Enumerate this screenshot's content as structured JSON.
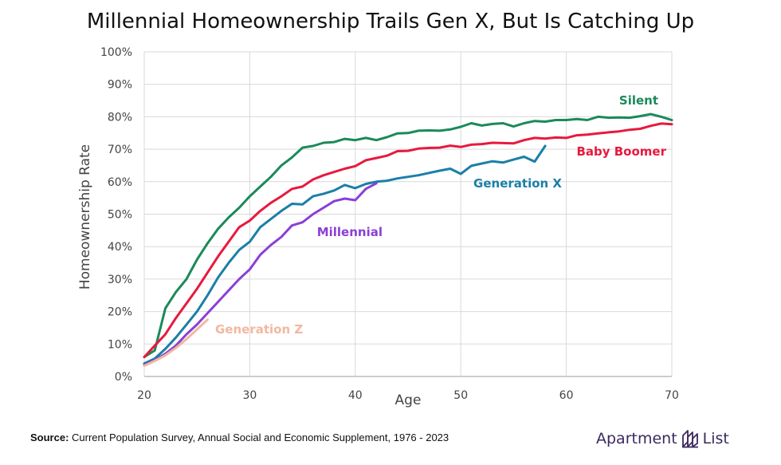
{
  "chart_data": {
    "type": "line",
    "title": "Millennial Homeownership Trails Gen X, But Is Catching Up",
    "xlabel": "Age",
    "ylabel": "Homeownership Rate",
    "xlim": [
      20,
      70
    ],
    "ylim": [
      0,
      100
    ],
    "x_ticks": [
      "20",
      "30",
      "40",
      "50",
      "60",
      "70"
    ],
    "y_ticks": [
      "0%",
      "10%",
      "20%",
      "30%",
      "40%",
      "50%",
      "60%",
      "70%",
      "80%",
      "90%",
      "100%"
    ],
    "grid": true,
    "legend": "inline labels",
    "series": [
      {
        "name": "Silent",
        "color": "#1a8a5a",
        "points": [
          [
            20,
            6
          ],
          [
            21,
            8
          ],
          [
            22,
            21
          ],
          [
            23,
            26
          ],
          [
            24,
            30
          ],
          [
            25,
            36
          ],
          [
            26,
            41
          ],
          [
            27,
            45.5
          ],
          [
            28,
            49
          ],
          [
            29,
            52
          ],
          [
            30,
            55.5
          ],
          [
            31,
            58.5
          ],
          [
            32,
            61.5
          ],
          [
            33,
            65
          ],
          [
            34,
            67.5
          ],
          [
            35,
            70.5
          ],
          [
            36,
            71
          ],
          [
            37,
            72
          ],
          [
            38,
            72.2
          ],
          [
            39,
            73.2
          ],
          [
            40,
            72.8
          ],
          [
            41,
            73.5
          ],
          [
            42,
            72.8
          ],
          [
            43,
            73.7
          ],
          [
            44,
            74.9
          ],
          [
            45,
            75
          ],
          [
            46,
            75.7
          ],
          [
            47,
            75.8
          ],
          [
            48,
            75.7
          ],
          [
            49,
            76.1
          ],
          [
            50,
            76.9
          ],
          [
            51,
            78
          ],
          [
            52,
            77.3
          ],
          [
            53,
            77.8
          ],
          [
            54,
            78
          ],
          [
            55,
            77
          ],
          [
            56,
            78
          ],
          [
            57,
            78.7
          ],
          [
            58,
            78.5
          ],
          [
            59,
            79
          ],
          [
            60,
            79
          ],
          [
            61,
            79.3
          ],
          [
            62,
            79
          ],
          [
            63,
            80
          ],
          [
            64,
            79.7
          ],
          [
            65,
            79.8
          ],
          [
            66,
            79.7
          ],
          [
            67,
            80.2
          ],
          [
            68,
            80.8
          ],
          [
            69,
            80
          ],
          [
            70,
            79
          ]
        ]
      },
      {
        "name": "Baby Boomer",
        "color": "#e8193f",
        "points": [
          [
            20,
            6
          ],
          [
            21,
            9.5
          ],
          [
            22,
            13
          ],
          [
            23,
            18
          ],
          [
            24,
            22.5
          ],
          [
            25,
            27
          ],
          [
            26,
            32
          ],
          [
            27,
            37
          ],
          [
            28,
            41.5
          ],
          [
            29,
            46
          ],
          [
            30,
            48
          ],
          [
            31,
            51
          ],
          [
            32,
            53.5
          ],
          [
            33,
            55.5
          ],
          [
            34,
            57.8
          ],
          [
            35,
            58.5
          ],
          [
            36,
            60.7
          ],
          [
            37,
            62
          ],
          [
            38,
            63
          ],
          [
            39,
            64
          ],
          [
            40,
            64.8
          ],
          [
            41,
            66.6
          ],
          [
            42,
            67.3
          ],
          [
            43,
            68
          ],
          [
            44,
            69.4
          ],
          [
            45,
            69.5
          ],
          [
            46,
            70.2
          ],
          [
            47,
            70.4
          ],
          [
            48,
            70.5
          ],
          [
            49,
            71.1
          ],
          [
            50,
            70.7
          ],
          [
            51,
            71.4
          ],
          [
            52,
            71.6
          ],
          [
            53,
            72
          ],
          [
            54,
            71.9
          ],
          [
            55,
            71.8
          ],
          [
            56,
            72.8
          ],
          [
            57,
            73.5
          ],
          [
            58,
            73.3
          ],
          [
            59,
            73.6
          ],
          [
            60,
            73.5
          ],
          [
            61,
            74.3
          ],
          [
            62,
            74.5
          ],
          [
            63,
            74.9
          ],
          [
            64,
            75.2
          ],
          [
            65,
            75.5
          ],
          [
            66,
            76
          ],
          [
            67,
            76.3
          ],
          [
            68,
            77.2
          ],
          [
            69,
            77.9
          ],
          [
            70,
            77.7
          ]
        ]
      },
      {
        "name": "Generation X",
        "color": "#1a7fa8",
        "points": [
          [
            20,
            4
          ],
          [
            21,
            5.5
          ],
          [
            22,
            8.5
          ],
          [
            23,
            12
          ],
          [
            24,
            16
          ],
          [
            25,
            20
          ],
          [
            26,
            25
          ],
          [
            27,
            30.5
          ],
          [
            28,
            35
          ],
          [
            29,
            39
          ],
          [
            30,
            41.5
          ],
          [
            31,
            46
          ],
          [
            32,
            48.5
          ],
          [
            33,
            51
          ],
          [
            34,
            53.2
          ],
          [
            35,
            53
          ],
          [
            36,
            55.5
          ],
          [
            37,
            56.3
          ],
          [
            38,
            57.3
          ],
          [
            39,
            59
          ],
          [
            40,
            58
          ],
          [
            41,
            59.3
          ],
          [
            42,
            60
          ],
          [
            43,
            60.3
          ],
          [
            44,
            61
          ],
          [
            45,
            61.5
          ],
          [
            46,
            62
          ],
          [
            47,
            62.7
          ],
          [
            48,
            63.4
          ],
          [
            49,
            64
          ],
          [
            50,
            62.4
          ],
          [
            51,
            64.9
          ],
          [
            52,
            65.6
          ],
          [
            53,
            66.3
          ],
          [
            54,
            65.9
          ],
          [
            55,
            66.8
          ],
          [
            56,
            67.7
          ],
          [
            57,
            66.2
          ],
          [
            58,
            71
          ]
        ]
      },
      {
        "name": "Millennial",
        "color": "#8a3fd6",
        "points": [
          [
            20,
            3.5
          ],
          [
            21,
            5
          ],
          [
            22,
            7
          ],
          [
            23,
            9.5
          ],
          [
            24,
            13
          ],
          [
            25,
            16
          ],
          [
            26,
            19.5
          ],
          [
            27,
            23
          ],
          [
            28,
            26.5
          ],
          [
            29,
            30
          ],
          [
            30,
            33
          ],
          [
            31,
            37.5
          ],
          [
            32,
            40.5
          ],
          [
            33,
            43
          ],
          [
            34,
            46.5
          ],
          [
            35,
            47.5
          ],
          [
            36,
            50
          ],
          [
            37,
            52
          ],
          [
            38,
            54
          ],
          [
            39,
            54.8
          ],
          [
            40,
            54.3
          ],
          [
            41,
            57.8
          ],
          [
            42,
            59.5
          ]
        ]
      },
      {
        "name": "Generation Z",
        "color": "#f2b8a0",
        "points": [
          [
            20,
            3.3
          ],
          [
            21,
            4.8
          ],
          [
            22,
            6.5
          ],
          [
            23,
            8.8
          ],
          [
            24,
            11.5
          ],
          [
            25,
            14.5
          ],
          [
            26,
            17.5
          ]
        ]
      }
    ]
  },
  "footer": {
    "source_label": "Source:",
    "source_text": " Current Population Survey, Annual Social and Economic Supplement, 1976 - 2023",
    "brand_left": "Apartment",
    "brand_right": "List"
  }
}
